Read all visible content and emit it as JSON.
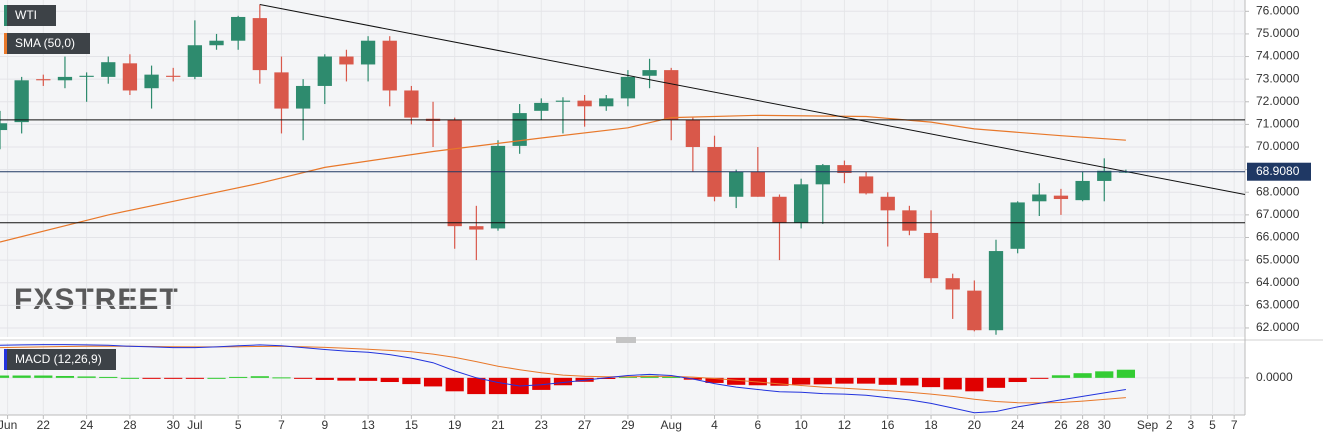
{
  "watermark": "FXSTREET",
  "chart_data": [
    {
      "type": "candlestick",
      "name": "WTI",
      "up_color": "#2e8b6e",
      "down_color": "#d9584a",
      "xlim": [
        0,
        57.5
      ],
      "ylim": [
        61.6,
        76.5
      ],
      "grid": true,
      "yticks": [
        {
          "value": 76,
          "label": "76.0000"
        },
        {
          "value": 75,
          "label": "75.0000"
        },
        {
          "value": 74,
          "label": "74.0000"
        },
        {
          "value": 73,
          "label": "73.0000"
        },
        {
          "value": 72,
          "label": "72.0000"
        },
        {
          "value": 71,
          "label": "71.0000"
        },
        {
          "value": 70,
          "label": "70.0000"
        },
        {
          "value": 69,
          "label": "69.0000"
        },
        {
          "value": 68,
          "label": "68.0000"
        },
        {
          "value": 67,
          "label": "67.0000"
        },
        {
          "value": 66,
          "label": "66.0000"
        },
        {
          "value": 65,
          "label": "65.0000"
        },
        {
          "value": 64,
          "label": "64.0000"
        },
        {
          "value": 63,
          "label": "63.0000"
        },
        {
          "value": 62,
          "label": "62.0000"
        }
      ],
      "open": [
        70.75,
        71.1,
        73.0,
        72.95,
        73.1,
        73.1,
        73.7,
        72.6,
        73.15,
        73.1,
        74.5,
        74.7,
        75.7,
        73.3,
        71.7,
        72.7,
        74.0,
        73.65,
        74.7,
        72.5,
        71.25,
        71.2,
        66.5,
        66.4,
        70.05,
        71.6,
        72.0,
        72.05,
        71.8,
        72.15,
        73.15,
        73.4,
        71.2,
        70.0,
        67.8,
        68.9,
        67.8,
        66.65,
        68.35,
        69.2,
        68.7,
        67.8,
        67.2,
        66.2,
        64.2,
        63.65,
        61.9,
        65.5,
        67.6,
        67.85,
        67.65,
        68.5,
        68.9
      ],
      "high": [
        71.6,
        73.1,
        73.2,
        74.0,
        73.3,
        74.0,
        74.1,
        73.6,
        73.5,
        75.6,
        75.0,
        75.8,
        76.3,
        74.0,
        73.0,
        74.1,
        74.3,
        74.9,
        74.9,
        72.7,
        72.0,
        71.3,
        67.4,
        70.3,
        71.9,
        72.15,
        72.2,
        72.3,
        72.3,
        73.4,
        73.9,
        73.5,
        71.3,
        70.5,
        69.0,
        70.0,
        67.9,
        68.6,
        69.25,
        69.4,
        68.9,
        68.0,
        67.4,
        67.2,
        64.4,
        64.1,
        65.9,
        67.6,
        68.4,
        68.15,
        68.9,
        69.5,
        69.0
      ],
      "low": [
        69.9,
        70.6,
        72.7,
        72.6,
        72.0,
        72.8,
        72.3,
        71.7,
        72.9,
        73.0,
        74.3,
        74.3,
        72.8,
        70.6,
        70.3,
        71.9,
        72.9,
        72.9,
        71.8,
        71.0,
        70.0,
        65.5,
        65.0,
        66.3,
        69.7,
        71.2,
        70.6,
        70.9,
        71.6,
        71.8,
        72.6,
        70.3,
        68.9,
        67.6,
        67.3,
        67.8,
        65.0,
        66.4,
        66.6,
        68.4,
        67.9,
        65.6,
        66.1,
        64.0,
        62.4,
        61.85,
        61.7,
        65.3,
        66.95,
        67.0,
        67.6,
        67.6,
        68.85
      ],
      "close": [
        71.05,
        72.95,
        72.95,
        73.1,
        73.15,
        73.75,
        72.5,
        73.2,
        73.1,
        74.5,
        74.7,
        75.75,
        73.4,
        71.7,
        72.7,
        74.0,
        73.65,
        74.7,
        72.5,
        71.3,
        71.15,
        66.5,
        66.35,
        70.05,
        71.5,
        71.95,
        72.05,
        71.8,
        72.15,
        73.1,
        73.4,
        71.2,
        70.0,
        67.8,
        68.9,
        67.8,
        66.65,
        68.35,
        69.2,
        68.85,
        67.95,
        67.2,
        66.3,
        64.2,
        63.7,
        61.9,
        65.4,
        67.55,
        67.9,
        67.7,
        68.5,
        68.95,
        68.91
      ],
      "sma": {
        "name": "SMA (50,0)",
        "color": "#e8782a",
        "x": [
          0,
          5,
          9,
          12,
          15,
          20,
          25,
          29,
          31,
          35,
          40,
          43,
          45,
          49,
          52
        ],
        "values": [
          65.8,
          67.0,
          67.8,
          68.4,
          69.1,
          69.8,
          70.4,
          70.85,
          71.3,
          71.4,
          71.35,
          71.1,
          70.8,
          70.5,
          70.3
        ]
      },
      "levels": [
        71.2,
        66.65
      ],
      "level_color": "#111111",
      "trendline": {
        "x": [
          12,
          57.5
        ],
        "values": [
          76.3,
          67.9
        ],
        "color": "#111111"
      },
      "last_price": {
        "value": 68.908,
        "label": "68.9080",
        "color": "#1f3864"
      }
    },
    {
      "type": "macd",
      "name": "MACD (12,26,9)",
      "xlim": [
        0,
        57.5
      ],
      "ylim": [
        -1.6,
        1.5
      ],
      "yticks": [
        {
          "value": 0,
          "label": "0.0000"
        }
      ],
      "xticks": [
        {
          "value": 0.35,
          "label": "Jun"
        },
        {
          "value": 2,
          "label": "22"
        },
        {
          "value": 4,
          "label": "24"
        },
        {
          "value": 6,
          "label": "28"
        },
        {
          "value": 8,
          "label": "30"
        },
        {
          "value": 9,
          "label": "Jul"
        },
        {
          "value": 11,
          "label": "5"
        },
        {
          "value": 13,
          "label": "7"
        },
        {
          "value": 15,
          "label": "9"
        },
        {
          "value": 17,
          "label": "13"
        },
        {
          "value": 19,
          "label": "15"
        },
        {
          "value": 21,
          "label": "19"
        },
        {
          "value": 23,
          "label": "21"
        },
        {
          "value": 25,
          "label": "23"
        },
        {
          "value": 27,
          "label": "27"
        },
        {
          "value": 29,
          "label": "29"
        },
        {
          "value": 31,
          "label": "Aug"
        },
        {
          "value": 33,
          "label": "4"
        },
        {
          "value": 35,
          "label": "6"
        },
        {
          "value": 37,
          "label": "10"
        },
        {
          "value": 39,
          "label": "12"
        },
        {
          "value": 41,
          "label": "16"
        },
        {
          "value": 43,
          "label": "18"
        },
        {
          "value": 45,
          "label": "20"
        },
        {
          "value": 47,
          "label": "24"
        },
        {
          "value": 49,
          "label": "26"
        },
        {
          "value": 50,
          "label": "28"
        },
        {
          "value": 51,
          "label": "30"
        },
        {
          "value": 53,
          "label": "Sep"
        },
        {
          "value": 54,
          "label": "2"
        },
        {
          "value": 55,
          "label": "3"
        },
        {
          "value": 56,
          "label": "5"
        },
        {
          "value": 57,
          "label": "7"
        }
      ],
      "macd": {
        "color": "#2233dd",
        "values": [
          1.4,
          1.42,
          1.43,
          1.43,
          1.42,
          1.4,
          1.36,
          1.33,
          1.3,
          1.3,
          1.33,
          1.38,
          1.42,
          1.38,
          1.3,
          1.22,
          1.15,
          1.1,
          1.0,
          0.85,
          0.65,
          0.3,
          0.0,
          -0.2,
          -0.35,
          -0.3,
          -0.2,
          -0.1,
          0.0,
          0.1,
          0.15,
          0.1,
          -0.05,
          -0.25,
          -0.4,
          -0.5,
          -0.6,
          -0.62,
          -0.68,
          -0.7,
          -0.75,
          -0.85,
          -0.95,
          -1.1,
          -1.3,
          -1.5,
          -1.45,
          -1.25,
          -1.1,
          -0.95,
          -0.8,
          -0.65,
          -0.5
        ]
      },
      "signal": {
        "color": "#e8782a",
        "values": [
          1.3,
          1.32,
          1.33,
          1.35,
          1.36,
          1.36,
          1.36,
          1.35,
          1.34,
          1.33,
          1.33,
          1.34,
          1.35,
          1.36,
          1.34,
          1.31,
          1.27,
          1.23,
          1.18,
          1.12,
          1.02,
          0.88,
          0.7,
          0.5,
          0.35,
          0.22,
          0.12,
          0.07,
          0.05,
          0.05,
          0.06,
          0.06,
          0.03,
          -0.03,
          -0.1,
          -0.18,
          -0.26,
          -0.33,
          -0.4,
          -0.45,
          -0.5,
          -0.55,
          -0.62,
          -0.7,
          -0.8,
          -0.92,
          -1.02,
          -1.07,
          -1.08,
          -1.06,
          -1.0,
          -0.93,
          -0.85
        ]
      },
      "histogram": {
        "up_color": "#33cc33",
        "down_color": "#e00000",
        "values": [
          0.1,
          0.1,
          0.1,
          0.08,
          0.06,
          0.04,
          0,
          -0.02,
          -0.04,
          -0.03,
          0,
          0.04,
          0.07,
          0.02,
          -0.04,
          -0.09,
          -0.12,
          -0.13,
          -0.18,
          -0.27,
          -0.37,
          -0.58,
          -0.7,
          -0.7,
          -0.7,
          -0.52,
          -0.32,
          -0.17,
          -0.05,
          0.05,
          0.09,
          0.04,
          -0.08,
          -0.22,
          -0.3,
          -0.32,
          -0.34,
          -0.29,
          -0.28,
          -0.25,
          -0.25,
          -0.3,
          -0.33,
          -0.4,
          -0.5,
          -0.58,
          -0.43,
          -0.18,
          -0.02,
          0.11,
          0.2,
          0.28,
          0.35
        ]
      }
    }
  ]
}
